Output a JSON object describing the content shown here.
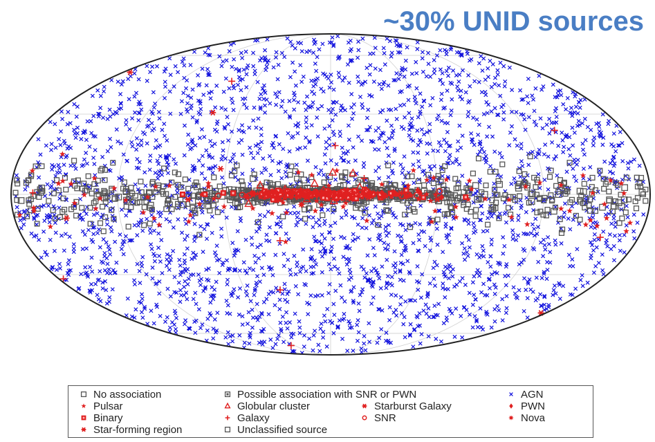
{
  "headline": "~30% UNID sources",
  "chart_data": {
    "type": "scatter",
    "projection": "Hammer-Aitoff all-sky (galactic coordinates)",
    "grid": true,
    "legend_position": "bottom",
    "title": "",
    "xlabel": "",
    "ylabel": "",
    "series": [
      {
        "name": "No association",
        "marker": "square-open-small",
        "color": "#555555"
      },
      {
        "name": "Possible association with SNR or PWN",
        "marker": "square-dot",
        "color": "#555555"
      },
      {
        "name": "AGN",
        "marker": "x-small",
        "color": "#1010dd"
      },
      {
        "name": "Pulsar",
        "marker": "star",
        "color": "#e02020"
      },
      {
        "name": "Globular cluster",
        "marker": "triangle-open",
        "color": "#e02020"
      },
      {
        "name": "Starburst Galaxy",
        "marker": "asterisk",
        "color": "#e02020"
      },
      {
        "name": "PWN",
        "marker": "diamond",
        "color": "#e02020"
      },
      {
        "name": "Binary",
        "marker": "square-filled",
        "color": "#e02020"
      },
      {
        "name": "Galaxy",
        "marker": "plus",
        "color": "#e02020"
      },
      {
        "name": "SNR",
        "marker": "circle-open",
        "color": "#e02020"
      },
      {
        "name": "Nova",
        "marker": "burst",
        "color": "#e02020"
      },
      {
        "name": "Star-forming region",
        "marker": "asterisk",
        "color": "#e02020"
      },
      {
        "name": "Unclassified source",
        "marker": "square-open",
        "color": "#555555"
      }
    ],
    "distribution": {
      "AGN": "isotropic over the full sky, densest away from the galactic plane",
      "unassociated_and_galactic_classes": "concentrated along the galactic equator, densest toward the galactic center"
    }
  },
  "legend": {
    "items": [
      {
        "label": "No association",
        "marker": "square-open-small",
        "color": "#555555"
      },
      {
        "label": "Possible association with SNR or PWN",
        "marker": "square-dot",
        "color": "#555555"
      },
      {
        "label": "AGN",
        "marker": "x-small",
        "color": "#1010dd"
      },
      {
        "label": "Pulsar",
        "marker": "star",
        "color": "#e02020"
      },
      {
        "label": "Globular cluster",
        "marker": "triangle-open",
        "color": "#e02020"
      },
      {
        "label": "Starburst Galaxy",
        "marker": "asterisk",
        "color": "#e02020"
      },
      {
        "label": "PWN",
        "marker": "diamond",
        "color": "#e02020"
      },
      {
        "label": "Binary",
        "marker": "square-filled",
        "color": "#e02020"
      },
      {
        "label": "Galaxy",
        "marker": "plus",
        "color": "#e02020"
      },
      {
        "label": "SNR",
        "marker": "circle-open",
        "color": "#e02020"
      },
      {
        "label": "Nova",
        "marker": "burst",
        "color": "#e02020"
      },
      {
        "label": "Star-forming region",
        "marker": "asterisk",
        "color": "#e02020"
      },
      {
        "label": "Unclassified source",
        "marker": "square-open",
        "color": "#555555"
      }
    ]
  }
}
